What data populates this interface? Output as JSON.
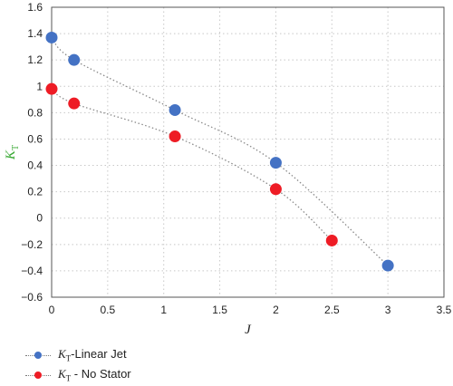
{
  "chart_data": {
    "type": "scatter",
    "xlabel": "J",
    "ylabel_main": "K",
    "ylabel_sub": "T",
    "xlim": [
      0,
      3.5
    ],
    "ylim": [
      -0.6,
      1.6
    ],
    "xticks": [
      "0",
      "0.5",
      "1",
      "1.5",
      "2",
      "2.5",
      "3",
      "3.5"
    ],
    "yticks": [
      "−0.6",
      "−0.4",
      "−0.2",
      "0",
      "0.2",
      "0.4",
      "0.6",
      "0.8",
      "1",
      "1.2",
      "1.4",
      "1.6"
    ],
    "grid": true,
    "legend_position": "bottom-left",
    "series": [
      {
        "name": "KT-Linear Jet",
        "legend_main": "K",
        "legend_sub": "T",
        "legend_rest": "-Linear Jet",
        "color": "#4472c4",
        "x": [
          0,
          0.2,
          1.1,
          2,
          3
        ],
        "y": [
          1.37,
          1.2,
          0.82,
          0.42,
          -0.36
        ]
      },
      {
        "name": "KT - No Stator",
        "legend_main": "K",
        "legend_sub": "T",
        "legend_rest": " - No Stator",
        "color": "#ee1c25",
        "x": [
          0,
          0.2,
          1.1,
          2,
          2.5
        ],
        "y": [
          0.98,
          0.87,
          0.62,
          0.22,
          -0.17
        ]
      }
    ],
    "colors": {
      "ylabel": "#3aaa35",
      "grid": "#c8c8c8",
      "trendline": "#8a8a8a"
    }
  }
}
